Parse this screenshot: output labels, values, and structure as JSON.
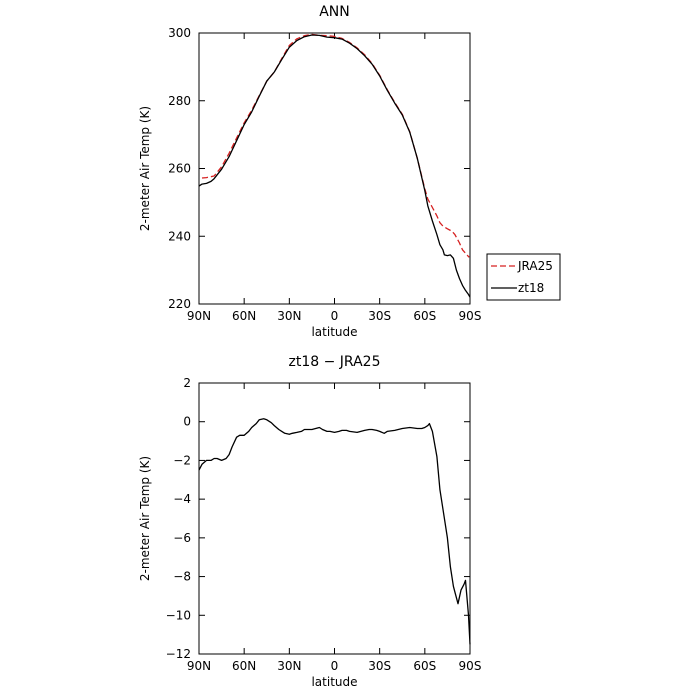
{
  "chart_data": [
    {
      "type": "line",
      "title": "ANN",
      "xlabel": "latitude",
      "ylabel": "2-meter Air Temp (K)",
      "xlim": [
        90,
        -90
      ],
      "ylim": [
        220,
        300
      ],
      "xticks": [
        90,
        60,
        30,
        0,
        -30,
        -60,
        -90
      ],
      "xticklabels": [
        "90N",
        "60N",
        "30N",
        "0",
        "30S",
        "60S",
        "90S"
      ],
      "yticks": [
        220,
        240,
        260,
        280,
        300
      ],
      "yticklabels": [
        "220",
        "240",
        "260",
        "280",
        "300"
      ],
      "legend": {
        "placement": "outside-right-bottom",
        "entries": [
          "JRA25",
          "zt18"
        ]
      },
      "series": [
        {
          "name": "JRA25",
          "style": "dashed",
          "color": "#d62020",
          "x": [
            88,
            85,
            80,
            75,
            70,
            65,
            60,
            55,
            50,
            45,
            40,
            35,
            30,
            25,
            20,
            15,
            10,
            5,
            0,
            -5,
            -10,
            -15,
            -20,
            -25,
            -30,
            -35,
            -40,
            -45,
            -50,
            -55,
            -60,
            -62,
            -65,
            -68,
            -70,
            -72,
            -75,
            -78,
            -80,
            -83,
            -85,
            -88,
            -89.5
          ],
          "y": [
            257.2,
            257.3,
            257.8,
            260.5,
            264.5,
            269.0,
            273.5,
            277.2,
            281.5,
            285.8,
            288.5,
            292.5,
            296.3,
            298.3,
            299.2,
            299.6,
            299.3,
            299.2,
            299.0,
            298.4,
            297.2,
            295.6,
            293.6,
            291.0,
            287.5,
            283.3,
            279.5,
            276.0,
            270.8,
            263.0,
            254.0,
            251.0,
            248.5,
            246.0,
            244.0,
            243.0,
            242.2,
            241.5,
            240.5,
            238.0,
            236.0,
            234.5,
            233.8
          ]
        },
        {
          "name": "zt18",
          "style": "solid",
          "color": "#000000",
          "x": [
            90,
            88,
            85,
            82,
            80,
            75,
            70,
            65,
            60,
            55,
            50,
            45,
            40,
            35,
            30,
            25,
            20,
            15,
            10,
            5,
            0,
            -5,
            -10,
            -15,
            -20,
            -25,
            -30,
            -35,
            -40,
            -45,
            -50,
            -55,
            -60,
            -62,
            -65,
            -68,
            -70,
            -72,
            -73,
            -75,
            -77,
            -79,
            -81,
            -83,
            -85,
            -87,
            -89,
            -90
          ],
          "y": [
            254.8,
            255.4,
            255.6,
            256.2,
            257.0,
            259.8,
            263.5,
            268.2,
            273.0,
            276.7,
            281.3,
            285.8,
            288.5,
            292.2,
            295.8,
            297.8,
            298.9,
            299.4,
            299.3,
            298.8,
            298.6,
            298.2,
            297.0,
            295.4,
            293.3,
            290.8,
            287.3,
            283.1,
            279.3,
            275.8,
            270.7,
            263.0,
            253.5,
            249.0,
            244.5,
            240.5,
            237.5,
            236.0,
            234.5,
            234.3,
            234.5,
            233.5,
            230.0,
            227.5,
            225.5,
            224.0,
            222.8,
            222.0
          ]
        }
      ]
    },
    {
      "type": "line",
      "title": "zt18 − JRA25",
      "xlabel": "latitude",
      "ylabel": "2-meter Air Temp (K)",
      "xlim": [
        90,
        -90
      ],
      "ylim": [
        -12,
        2
      ],
      "xticks": [
        90,
        60,
        30,
        0,
        -30,
        -60,
        -90
      ],
      "xticklabels": [
        "90N",
        "60N",
        "30N",
        "0",
        "30S",
        "60S",
        "90S"
      ],
      "yticks": [
        -12,
        -10,
        -8,
        -6,
        -4,
        -2,
        0,
        2
      ],
      "yticklabels": [
        "−12",
        "−10",
        "−8",
        "−6",
        "−4",
        "−2",
        "0",
        "2"
      ],
      "series": [
        {
          "style": "solid",
          "color": "#000000",
          "x": [
            90,
            88,
            85,
            82,
            80,
            78,
            75,
            72,
            70,
            68,
            65,
            63,
            60,
            57,
            55,
            52,
            50,
            47,
            45,
            42,
            40,
            37,
            35,
            33,
            30,
            28,
            25,
            22,
            20,
            15,
            10,
            8,
            5,
            3,
            0,
            -3,
            -5,
            -8,
            -10,
            -15,
            -20,
            -23,
            -25,
            -28,
            -30,
            -33,
            -35,
            -40,
            -45,
            -50,
            -55,
            -58,
            -60,
            -62,
            -63,
            -65,
            -68,
            -70,
            -72,
            -75,
            -77,
            -79,
            -80,
            -82,
            -84,
            -86,
            -87,
            -89,
            -90
          ],
          "y": [
            -2.5,
            -2.2,
            -2.0,
            -2.0,
            -1.9,
            -1.9,
            -2.0,
            -1.9,
            -1.7,
            -1.3,
            -0.8,
            -0.7,
            -0.7,
            -0.5,
            -0.3,
            -0.1,
            0.1,
            0.15,
            0.1,
            -0.05,
            -0.2,
            -0.4,
            -0.5,
            -0.6,
            -0.65,
            -0.6,
            -0.55,
            -0.5,
            -0.4,
            -0.4,
            -0.3,
            -0.4,
            -0.5,
            -0.5,
            -0.55,
            -0.5,
            -0.45,
            -0.45,
            -0.5,
            -0.55,
            -0.45,
            -0.4,
            -0.4,
            -0.45,
            -0.5,
            -0.6,
            -0.5,
            -0.45,
            -0.35,
            -0.3,
            -0.35,
            -0.35,
            -0.3,
            -0.2,
            -0.1,
            -0.5,
            -1.8,
            -3.5,
            -4.5,
            -6.0,
            -7.5,
            -8.5,
            -8.8,
            -9.4,
            -8.7,
            -8.4,
            -8.2,
            -10.0,
            -11.5
          ]
        }
      ]
    }
  ]
}
